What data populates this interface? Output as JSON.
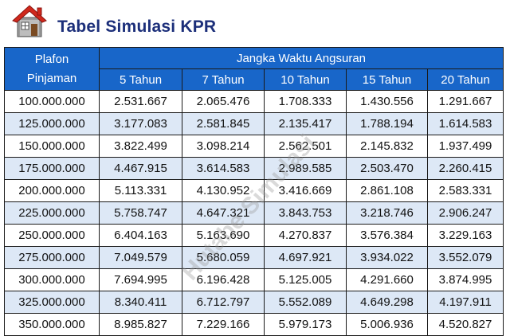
{
  "title": "Tabel Simulasi KPR",
  "icon": "house-icon",
  "watermark": "Hutabe Simulasi",
  "colors": {
    "header_bg": "#1866c9",
    "alt_row": "#dde8f6",
    "title": "#1c2f7a"
  },
  "table": {
    "plafon_header_line1": "Plafon",
    "plafon_header_line2": "Pinjaman",
    "group_header": "Jangka Waktu Angsuran",
    "terms": [
      "5 Tahun",
      "7 Tahun",
      "10 Tahun",
      "15 Tahun",
      "20 Tahun"
    ],
    "rows": [
      [
        "100.000.000",
        "2.531.667",
        "2.065.476",
        "1.708.333",
        "1.430.556",
        "1.291.667"
      ],
      [
        "125.000.000",
        "3.177.083",
        "2.581.845",
        "2.135.417",
        "1.788.194",
        "1.614.583"
      ],
      [
        "150.000.000",
        "3.822.499",
        "3.098.214",
        "2.562.501",
        "2.145.832",
        "1.937.499"
      ],
      [
        "175.000.000",
        "4.467.915",
        "3.614.583",
        "2.989.585",
        "2.503.470",
        "2.260.415"
      ],
      [
        "200.000.000",
        "5.113.331",
        "4.130.952",
        "3.416.669",
        "2.861.108",
        "2.583.331"
      ],
      [
        "225.000.000",
        "5.758.747",
        "4.647.321",
        "3.843.753",
        "3.218.746",
        "2.906.247"
      ],
      [
        "250.000.000",
        "6.404.163",
        "5.163.690",
        "4.270.837",
        "3.576.384",
        "3.229.163"
      ],
      [
        "275.000.000",
        "7.049.579",
        "5.680.059",
        "4.697.921",
        "3.934.022",
        "3.552.079"
      ],
      [
        "300.000.000",
        "7.694.995",
        "6.196.428",
        "5.125.005",
        "4.291.660",
        "3.874.995"
      ],
      [
        "325.000.000",
        "8.340.411",
        "6.712.797",
        "5.552.089",
        "4.649.298",
        "4.197.911"
      ],
      [
        "350.000.000",
        "8.985.827",
        "7.229.166",
        "5.979.173",
        "5.006.936",
        "4.520.827"
      ]
    ]
  }
}
